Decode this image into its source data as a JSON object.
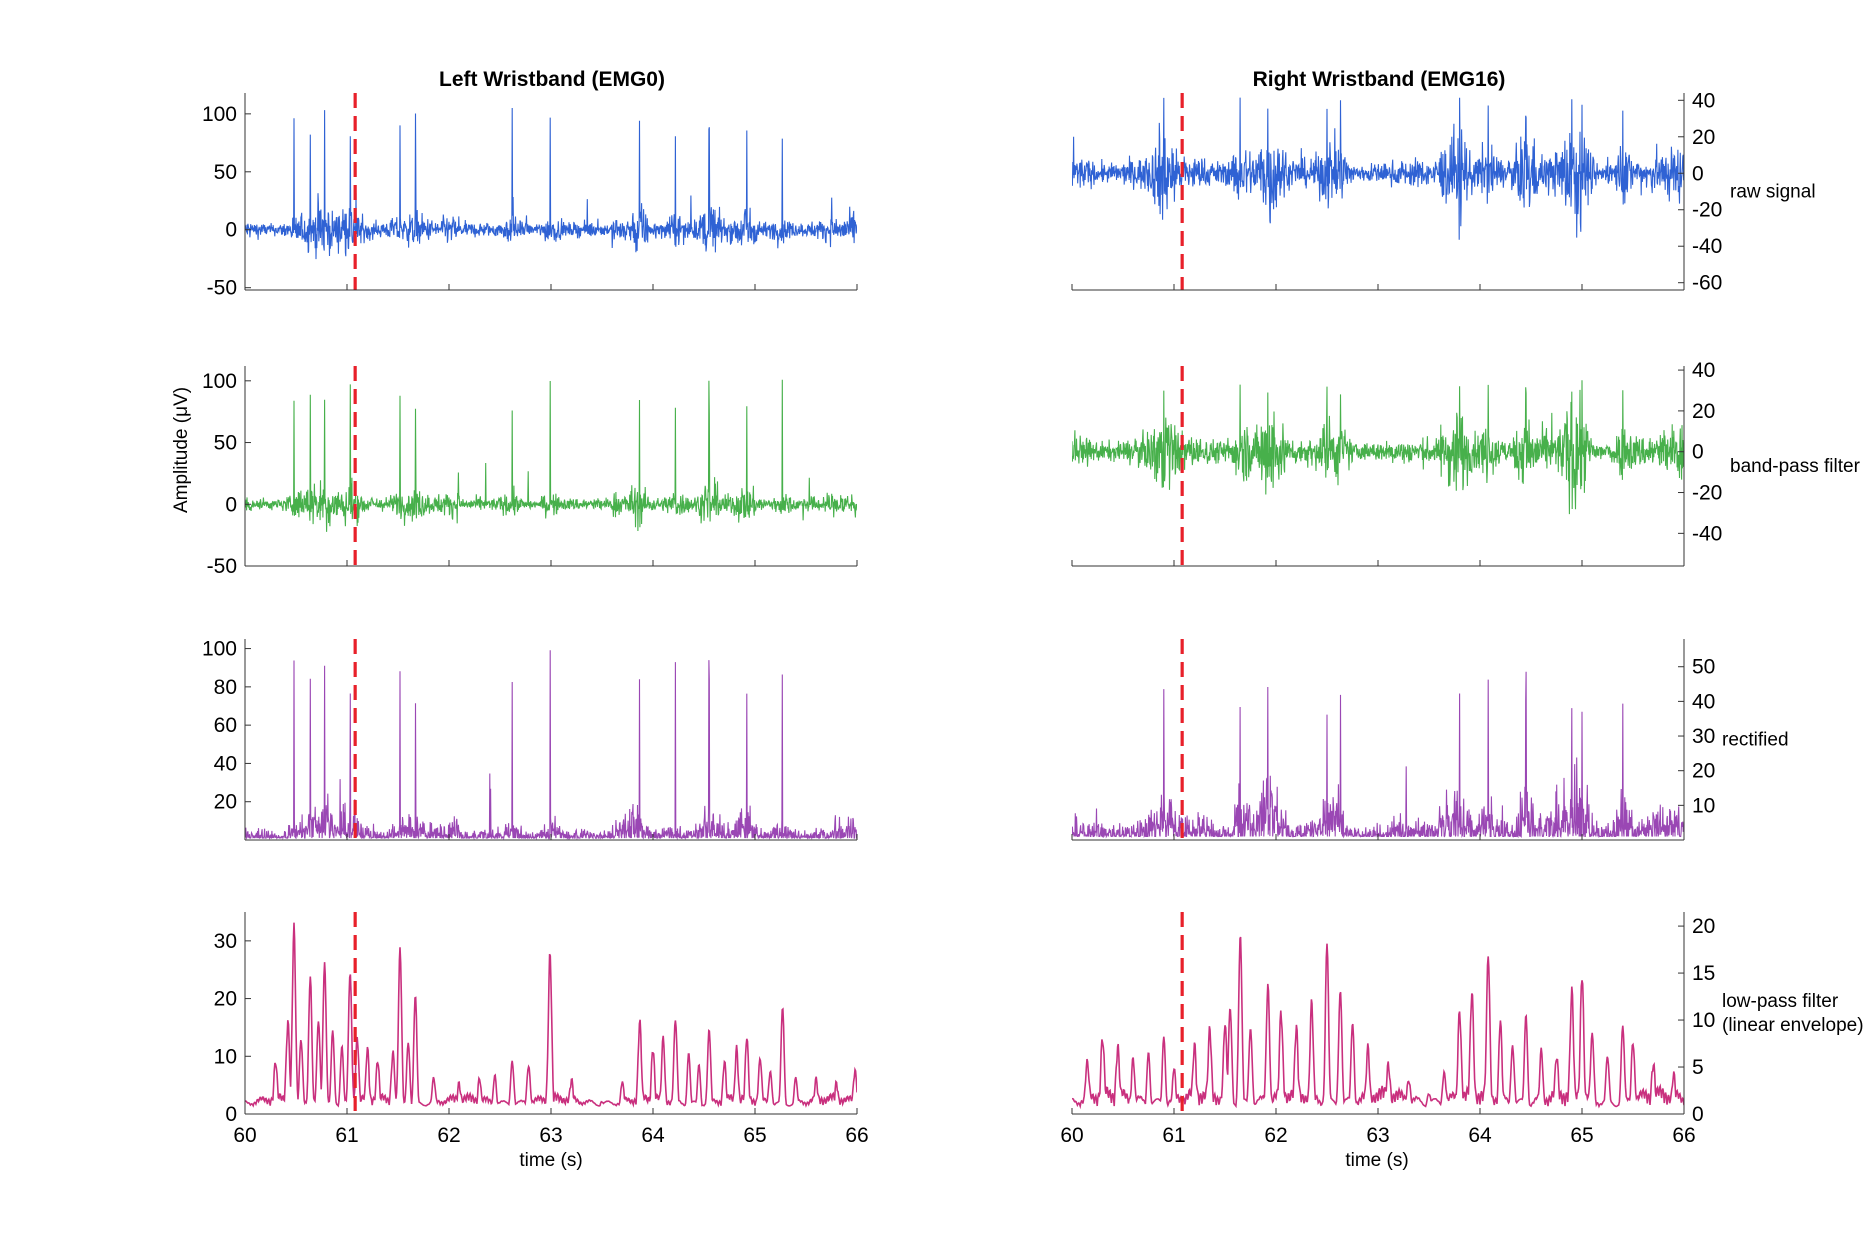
{
  "chart_data": {
    "type": "line",
    "x_range": [
      60,
      66
    ],
    "x_ticks": [
      60,
      61,
      62,
      63,
      64,
      65,
      66
    ],
    "xlabel": "time (s)",
    "ylabel": "Amplitude  (μV)",
    "event_marker_x": 61.08,
    "columns": [
      {
        "title": "Left Wristband (EMG0)",
        "axis_side": "left"
      },
      {
        "title": "Right Wristband (EMG16)",
        "axis_side": "right"
      }
    ],
    "rows": [
      {
        "label": [
          "raw signal"
        ],
        "color": "#2f62d4",
        "kind": "bipolar",
        "left": {
          "ylim": [
            -52,
            118
          ],
          "ticks": [
            -50,
            0,
            50,
            100
          ],
          "baseline": 0,
          "noise": 6,
          "spike_max": 108
        },
        "right": {
          "ylim": [
            -64,
            44
          ],
          "ticks": [
            -60,
            -40,
            -20,
            0,
            20,
            40
          ],
          "baseline": 0,
          "noise": 7,
          "spike_max": 42
        }
      },
      {
        "label": [
          "band-pass filter"
        ],
        "color": "#47b04b",
        "kind": "bipolar",
        "left": {
          "ylim": [
            -50,
            112
          ],
          "ticks": [
            -50,
            0,
            50,
            100
          ],
          "baseline": 0,
          "noise": 5,
          "spike_max": 102
        },
        "right": {
          "ylim": [
            -56,
            42
          ],
          "ticks": [
            -40,
            -20,
            0,
            20,
            40
          ],
          "baseline": 0,
          "noise": 6,
          "spike_max": 40
        }
      },
      {
        "label": [
          "rectified"
        ],
        "color": "#9a47b4",
        "kind": "rectified",
        "left": {
          "ylim": [
            0,
            105
          ],
          "ticks": [
            20,
            40,
            60,
            80,
            100
          ],
          "baseline": 0,
          "noise": 5,
          "spike_max": 101
        },
        "right": {
          "ylim": [
            0,
            58
          ],
          "ticks": [
            10,
            20,
            30,
            40,
            50
          ],
          "baseline": 0,
          "noise": 5,
          "spike_max": 50
        }
      },
      {
        "label": [
          "low-pass filter",
          "(linear envelope)"
        ],
        "color": "#c9307e",
        "kind": "envelope",
        "left": {
          "ylim": [
            0,
            35
          ],
          "ticks": [
            0,
            10,
            20,
            30
          ],
          "baseline": 0,
          "noise": 3,
          "spike_max": 32
        },
        "right": {
          "ylim": [
            0,
            21.5
          ],
          "ticks": [
            0,
            5,
            10,
            15,
            20
          ],
          "baseline": 0,
          "noise": 2,
          "spike_max": 20
        }
      }
    ],
    "peak_times": {
      "left": [
        60.48,
        60.64,
        60.78,
        61.03,
        61.52,
        61.67,
        62.62,
        62.99,
        63.87,
        64.22,
        64.55,
        64.92,
        65.27
      ],
      "right": [
        60.9,
        61.65,
        61.92,
        62.5,
        62.63,
        63.8,
        64.08,
        64.45,
        64.9,
        65.0,
        65.4
      ]
    },
    "envelope_peaks": {
      "left": [
        [
          60.3,
          8
        ],
        [
          60.42,
          15
        ],
        [
          60.48,
          31.5
        ],
        [
          60.55,
          12
        ],
        [
          60.64,
          23
        ],
        [
          60.72,
          16
        ],
        [
          60.78,
          26
        ],
        [
          60.86,
          14
        ],
        [
          60.95,
          11
        ],
        [
          61.03,
          24
        ],
        [
          61.1,
          12
        ],
        [
          61.2,
          10
        ],
        [
          61.3,
          8
        ],
        [
          61.45,
          10
        ],
        [
          61.52,
          28
        ],
        [
          61.6,
          12
        ],
        [
          61.67,
          20
        ],
        [
          61.85,
          6
        ],
        [
          62.1,
          4
        ],
        [
          62.3,
          5
        ],
        [
          62.45,
          6
        ],
        [
          62.62,
          9
        ],
        [
          62.78,
          8
        ],
        [
          62.99,
          27
        ],
        [
          63.2,
          5
        ],
        [
          63.5,
          2
        ],
        [
          63.7,
          5
        ],
        [
          63.87,
          15
        ],
        [
          64.0,
          10
        ],
        [
          64.1,
          12
        ],
        [
          64.22,
          16
        ],
        [
          64.35,
          10
        ],
        [
          64.45,
          8
        ],
        [
          64.55,
          14
        ],
        [
          64.7,
          8
        ],
        [
          64.82,
          10
        ],
        [
          64.92,
          12
        ],
        [
          65.05,
          9
        ],
        [
          65.15,
          7
        ],
        [
          65.27,
          18
        ],
        [
          65.4,
          6
        ],
        [
          65.6,
          5
        ],
        [
          65.8,
          4
        ],
        [
          65.98,
          7
        ]
      ],
      "right": [
        [
          60.15,
          5
        ],
        [
          60.3,
          7
        ],
        [
          60.45,
          6
        ],
        [
          60.6,
          5
        ],
        [
          60.75,
          6
        ],
        [
          60.9,
          7.5
        ],
        [
          61.0,
          4
        ],
        [
          61.2,
          6
        ],
        [
          61.35,
          8
        ],
        [
          61.5,
          9
        ],
        [
          61.55,
          11
        ],
        [
          61.65,
          19
        ],
        [
          61.75,
          9
        ],
        [
          61.92,
          13
        ],
        [
          62.05,
          10
        ],
        [
          62.2,
          8
        ],
        [
          62.35,
          11
        ],
        [
          62.5,
          17.5
        ],
        [
          62.63,
          13
        ],
        [
          62.75,
          9
        ],
        [
          62.9,
          6
        ],
        [
          63.1,
          4
        ],
        [
          63.3,
          3
        ],
        [
          63.5,
          2
        ],
        [
          63.65,
          4
        ],
        [
          63.8,
          10
        ],
        [
          63.92,
          12
        ],
        [
          64.08,
          16
        ],
        [
          64.2,
          9
        ],
        [
          64.32,
          7
        ],
        [
          64.45,
          10
        ],
        [
          64.6,
          6
        ],
        [
          64.75,
          5
        ],
        [
          64.9,
          12
        ],
        [
          65.0,
          14
        ],
        [
          65.1,
          8
        ],
        [
          65.25,
          6
        ],
        [
          65.4,
          9
        ],
        [
          65.5,
          7
        ],
        [
          65.7,
          4
        ],
        [
          65.9,
          3
        ]
      ]
    }
  }
}
